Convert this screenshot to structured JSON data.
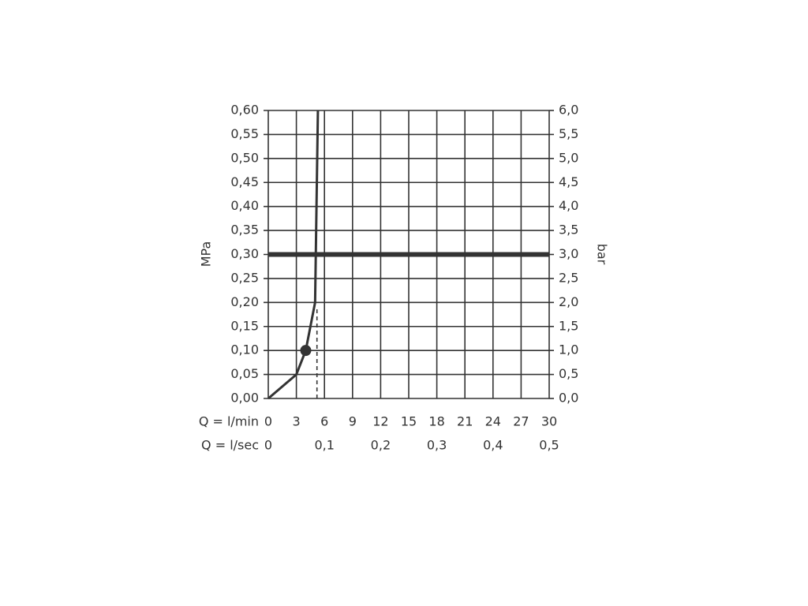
{
  "chart_data": {
    "type": "line",
    "y_label": "MPa",
    "y2_label": "bar",
    "x_label": "Q = l/min",
    "x2_label": "Q = l/sec",
    "x": [
      0,
      3,
      4,
      5,
      5.3
    ],
    "values": [
      0,
      0.05,
      0.1,
      0.2,
      0.6
    ],
    "color": "#333333",
    "marker": {
      "x": 4,
      "y": 0.1
    },
    "dashed_line": {
      "x": 5.2,
      "ylim": [
        0,
        0.19
      ]
    },
    "reference_line": 0.3,
    "xlim": [
      0,
      30
    ],
    "xticks": [
      0,
      3,
      6,
      9,
      12,
      15,
      18,
      21,
      24,
      27,
      30
    ],
    "x2lim": [
      0,
      0.5
    ],
    "x2ticks": [
      0,
      {
        "value": 0.1,
        "label": "0,1"
      },
      {
        "value": 0.2,
        "label": "0,2"
      },
      {
        "value": 0.3,
        "label": "0,3"
      },
      {
        "value": 0.4,
        "label": "0,4"
      },
      {
        "value": 0.5,
        "label": "0,5"
      }
    ],
    "ylim": [
      0,
      0.6
    ],
    "yticks": [
      {
        "value": 0,
        "label": "0,00"
      },
      {
        "value": 0.05,
        "label": "0,05"
      },
      {
        "value": 0.1,
        "label": "0,10"
      },
      {
        "value": 0.15,
        "label": "0,15"
      },
      {
        "value": 0.2,
        "label": "0,20"
      },
      {
        "value": 0.25,
        "label": "0,25"
      },
      {
        "value": 0.3,
        "label": "0,30"
      },
      {
        "value": 0.35,
        "label": "0,35"
      },
      {
        "value": 0.4,
        "label": "0,40"
      },
      {
        "value": 0.45,
        "label": "0,45"
      },
      {
        "value": 0.5,
        "label": "0,50"
      },
      {
        "value": 0.55,
        "label": "0,55"
      },
      {
        "value": 0.6,
        "label": "0,60"
      }
    ],
    "y2lim": [
      0,
      6
    ],
    "y2ticks": [
      {
        "value": 0,
        "label": "0,0"
      },
      {
        "value": 0.5,
        "label": "0,5"
      },
      {
        "value": 1,
        "label": "1,0"
      },
      {
        "value": 1.5,
        "label": "1,5"
      },
      {
        "value": 2,
        "label": "2,0"
      },
      {
        "value": 2.5,
        "label": "2,5"
      },
      {
        "value": 3,
        "label": "3,0"
      },
      {
        "value": 3.5,
        "label": "3,5"
      },
      {
        "value": 4,
        "label": "4,0"
      },
      {
        "value": 4.5,
        "label": "4,5"
      },
      {
        "value": 5,
        "label": "5,0"
      },
      {
        "value": 5.5,
        "label": "5,5"
      },
      {
        "value": 6,
        "label": "6,0"
      }
    ],
    "grid": true
  }
}
